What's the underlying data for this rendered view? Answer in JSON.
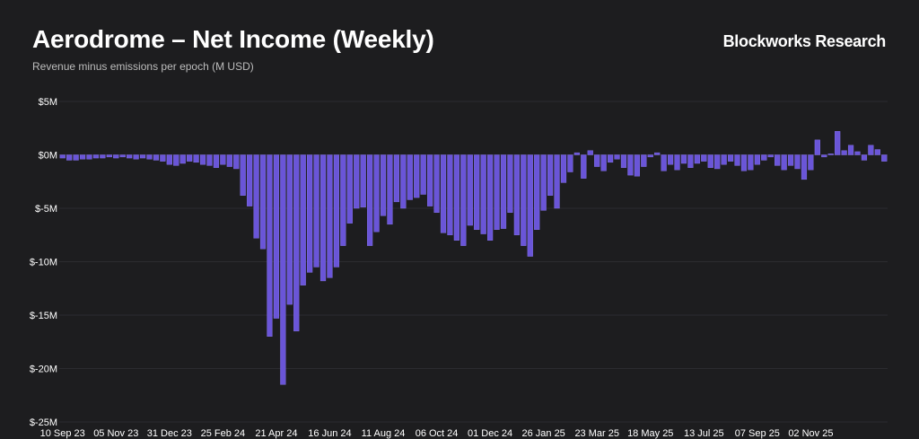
{
  "header": {
    "title": "Aerodrome – Net Income (Weekly)",
    "subtitle": "Revenue minus emissions per epoch (M USD)",
    "brand": "Blockworks Research"
  },
  "colors": {
    "background": "#1d1d1f",
    "bar": "#6a55d8",
    "bar_edge": "#8a78f0",
    "grid": "#2c2c30",
    "tick_text": "#ffffff"
  },
  "chart_data": {
    "type": "bar",
    "title": "Aerodrome – Net Income (Weekly)",
    "subtitle": "Revenue minus emissions per epoch (M USD)",
    "xlabel": "",
    "ylabel": "",
    "ylim": [
      -25,
      5
    ],
    "y_ticks": [
      5,
      0,
      -5,
      -10,
      -15,
      -20,
      -25
    ],
    "y_tick_labels": [
      "$5M",
      "$0M",
      "$-5M",
      "$-10M",
      "$-15M",
      "$-20M",
      "$-25M"
    ],
    "x_tick_labels": [
      "10 Sep 23",
      "05 Nov 23",
      "31 Dec 23",
      "25 Feb 24",
      "21 Apr 24",
      "16 Jun 24",
      "11 Aug 24",
      "06 Oct 24",
      "01 Dec 24",
      "26 Jan 25",
      "23 Mar 25",
      "18 May 25",
      "13 Jul 25",
      "07 Sep 25",
      "02 Nov 25"
    ],
    "x_tick_every": 8,
    "grid": true,
    "legend": "none",
    "series": [
      {
        "values": [
          -0.3,
          -0.5,
          -0.5,
          -0.4,
          -0.4,
          -0.3,
          -0.3,
          -0.2,
          -0.3,
          -0.2,
          -0.3,
          -0.4,
          -0.3,
          -0.4,
          -0.5,
          -0.6,
          -0.9,
          -1.0,
          -0.8,
          -0.6,
          -0.7,
          -0.9,
          -1.0,
          -1.2,
          -0.9,
          -1.1,
          -1.3,
          -3.8,
          -4.8,
          -7.8,
          -8.8,
          -17.0,
          -15.3,
          -21.5,
          -14.0,
          -16.5,
          -12.2,
          -11.0,
          -10.5,
          -11.8,
          -11.5,
          -10.5,
          -8.5,
          -6.4,
          -5.0,
          -4.9,
          -8.5,
          -7.2,
          -5.7,
          -6.5,
          -4.4,
          -5.0,
          -4.2,
          -4.0,
          -3.7,
          -4.8,
          -5.4,
          -7.3,
          -7.5,
          -8.0,
          -8.5,
          -6.6,
          -7.0,
          -7.4,
          -8.0,
          -7.0,
          -6.9,
          -5.4,
          -7.5,
          -8.5,
          -9.5,
          -7.0,
          -5.2,
          -3.8,
          -5.0,
          -2.6,
          -1.6,
          0.2,
          -2.2,
          0.4,
          -1.1,
          -1.5,
          -0.7,
          -0.4,
          -1.2,
          -1.9,
          -2.0,
          -1.1,
          -0.2,
          0.2,
          -1.5,
          -0.9,
          -1.4,
          -0.8,
          -1.2,
          -0.8,
          -0.6,
          -1.2,
          -1.3,
          -0.9,
          -0.6,
          -1.0,
          -1.5,
          -1.4,
          -0.9,
          -0.5,
          -0.2,
          -1.0,
          -1.4,
          -1.0,
          -1.3,
          -2.3,
          -1.4,
          1.4,
          -0.2,
          0.1,
          2.2,
          0.4,
          0.9,
          0.3,
          -0.5,
          0.9,
          0.5,
          -0.6
        ]
      }
    ]
  }
}
